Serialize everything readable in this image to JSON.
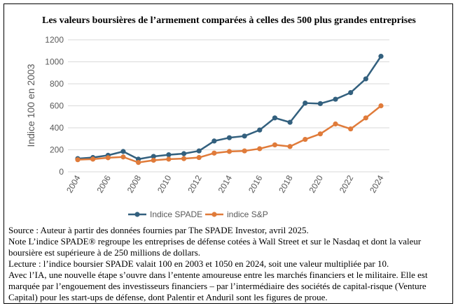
{
  "chart_data": {
    "type": "line",
    "title": "Les valeurs boursières de l’armement comparées à celles des 500 plus grandes entreprises",
    "ylabel": "Indice 100 en 2003",
    "xlabel": "",
    "x": [
      2004,
      2005,
      2006,
      2007,
      2008,
      2009,
      2010,
      2011,
      2012,
      2013,
      2014,
      2015,
      2016,
      2017,
      2018,
      2019,
      2020,
      2021,
      2022,
      2023,
      2024
    ],
    "xticks": [
      "2004",
      "2006",
      "2008",
      "2010",
      "2012",
      "2014",
      "2016",
      "2018",
      "2020",
      "2022",
      "2024"
    ],
    "ylim": [
      0,
      1200
    ],
    "yticks": [
      "0",
      "200",
      "400",
      "600",
      "800",
      "1000",
      "1200"
    ],
    "grid": "horizontal",
    "legend_position": "bottom",
    "series": [
      {
        "name": "Indice SPADE",
        "color": "#33607e",
        "values": [
          120,
          130,
          150,
          185,
          115,
          140,
          155,
          165,
          190,
          280,
          310,
          325,
          380,
          490,
          450,
          625,
          620,
          660,
          720,
          845,
          1050
        ]
      },
      {
        "name": "indice S&P",
        "color": "#e07b3a",
        "values": [
          110,
          115,
          128,
          135,
          85,
          105,
          115,
          120,
          130,
          170,
          185,
          190,
          210,
          245,
          230,
          295,
          345,
          435,
          390,
          490,
          600
        ]
      }
    ]
  },
  "notes": {
    "source": "Source : Auteur à partir des données fournies par The SPADE Investor, avril 2025.",
    "note": "Note L’indice SPADE® regroupe les entreprises de défense cotées à Wall Street et sur le Nasdaq et dont la valeur boursière est supérieure à  de 250 millions de dollars.",
    "lecture": "Lecture : l’indice boursier SPADE valait 100 en 2003 et 1050 en 2024, soit une valeur multipliée par 10.",
    "ia": "Avec l’IA, une nouvelle étape s’ouvre dans l’entente amoureuse entre les marchés financiers et le militaire. Elle est marquée par l’engouement des investisseurs financiers – par l’intermédiaire des sociétés de capital-risque (Venture Capital) pour les start-ups de défense, dont Palentir et Anduril sont les figures de proue."
  }
}
